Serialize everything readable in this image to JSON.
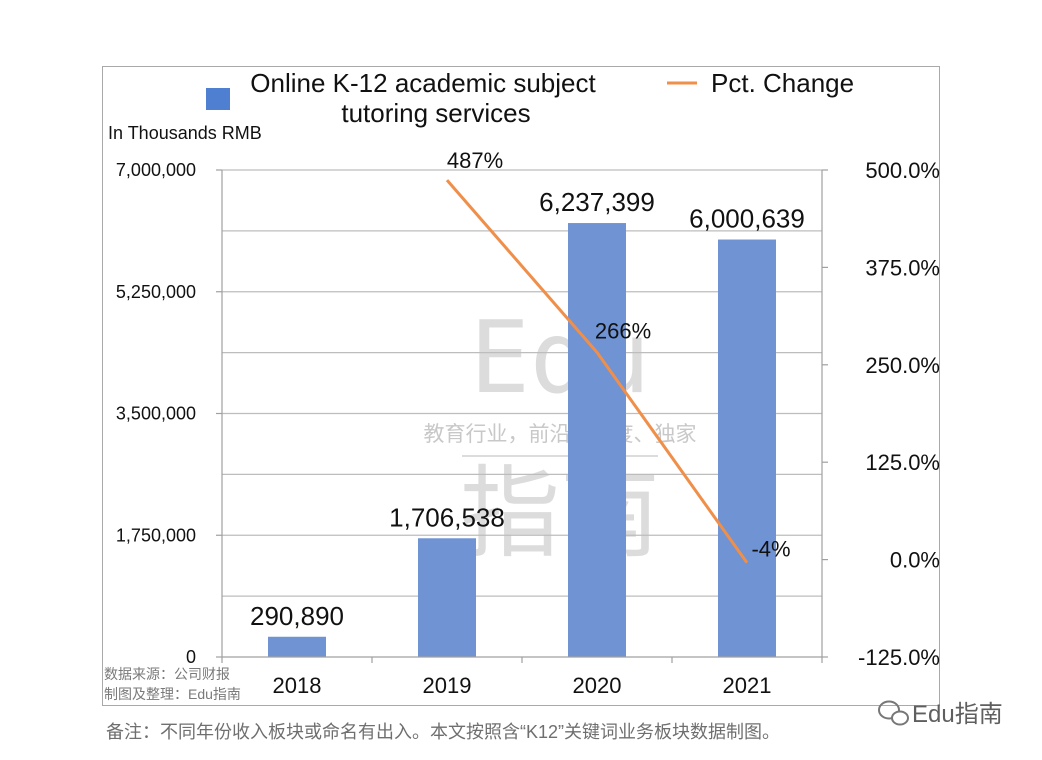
{
  "chart_data": {
    "type": "bar",
    "categories": [
      "2018",
      "2019",
      "2020",
      "2021"
    ],
    "series": [
      {
        "name": "Online K-12 academic subject tutoring services",
        "type": "bar",
        "axis": "left",
        "values": [
          290890,
          1706538,
          6237399,
          6000639
        ],
        "labels": [
          "290,890",
          "1,706,538",
          "6,237,399",
          "6,000,639"
        ],
        "color": "#6f93d3"
      },
      {
        "name": "Pct. Change",
        "type": "line",
        "axis": "right",
        "values": [
          null,
          487,
          266,
          -4
        ],
        "labels": [
          "",
          "487%",
          "266%",
          "-4%"
        ],
        "color": "#ef8f4a"
      }
    ],
    "legend": {
      "bar_line1": "Online K-12 academic subject",
      "bar_line2": "tutoring services",
      "line": "Pct. Change",
      "position": "top"
    },
    "unit_label": "In Thousands RMB",
    "y_left": {
      "min": 0,
      "max": 7000000,
      "ticks": [
        0,
        1750000,
        3500000,
        5250000,
        7000000
      ],
      "tick_labels": [
        "0",
        "1,750,000",
        "3,500,000",
        "5,250,000",
        "7,000,000"
      ]
    },
    "y_right": {
      "min": -125,
      "max": 500,
      "ticks": [
        -125,
        0,
        125,
        250,
        375,
        500
      ],
      "tick_labels": [
        "-125.0%",
        "0.0%",
        "125.0%",
        "250.0%",
        "375.0%",
        "500.0%"
      ]
    },
    "grid": true
  },
  "source": {
    "line1": "数据来源：公司财报",
    "line2": "制图及整理：Edu指南"
  },
  "note": "备注：不同年份收入板块或命名有出入。本文按照含“K12”关键词业务板块数据制图。",
  "watermark": {
    "big": "Edu",
    "slogan": "教育行业，前沿、深度、独家",
    "chars": "指南"
  },
  "brand": {
    "text": "Edu指南",
    "icon": "wechat-icon"
  }
}
